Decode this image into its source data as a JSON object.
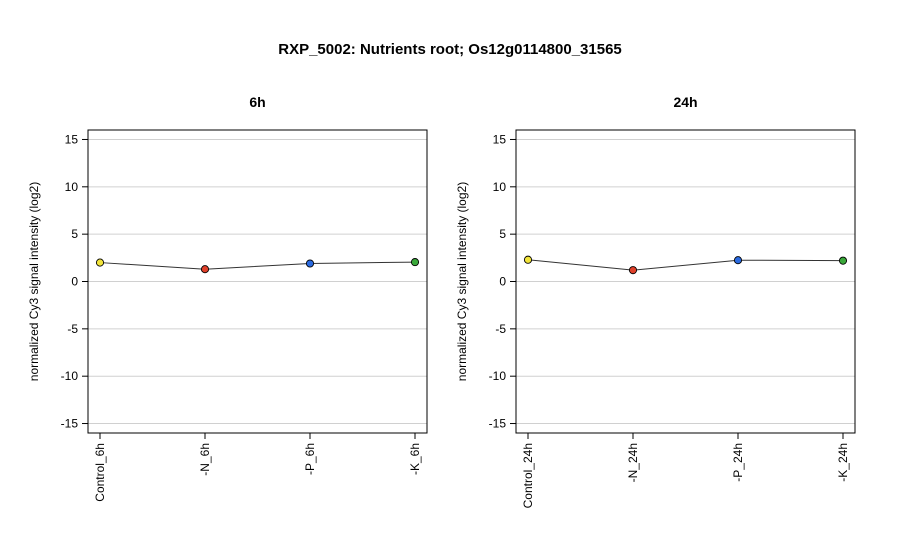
{
  "title": "RXP_5002: Nutrients root; Os12g0114800_31565",
  "colors": {
    "grid": "#d0d0d0",
    "line": "#333333",
    "frame": "#000000"
  },
  "chart_data": [
    {
      "type": "line",
      "title": "6h",
      "ylabel": "normalized Cy3 signal intensity (log2)",
      "xlabel": "",
      "ylim": [
        -16,
        16
      ],
      "yticks": [
        15,
        10,
        5,
        0,
        -5,
        -10,
        -15
      ],
      "grid": true,
      "categories": [
        "Control_6h",
        "-N_6h",
        "-P_6h",
        "-K_6h"
      ],
      "values": [
        2.0,
        1.3,
        1.9,
        2.05
      ],
      "point_colors": [
        "#f2e43a",
        "#e0402a",
        "#2a6ae0",
        "#3aa83a"
      ]
    },
    {
      "type": "line",
      "title": "24h",
      "ylabel": "normalized Cy3 signal intensity (log2)",
      "xlabel": "",
      "ylim": [
        -16,
        16
      ],
      "yticks": [
        15,
        10,
        5,
        0,
        -5,
        -10,
        -15
      ],
      "grid": true,
      "categories": [
        "Control_24h",
        "-N_24h",
        "-P_24h",
        "-K_24h"
      ],
      "values": [
        2.3,
        1.2,
        2.25,
        2.2
      ],
      "point_colors": [
        "#f2e43a",
        "#e0402a",
        "#2a6ae0",
        "#3aa83a"
      ]
    }
  ]
}
